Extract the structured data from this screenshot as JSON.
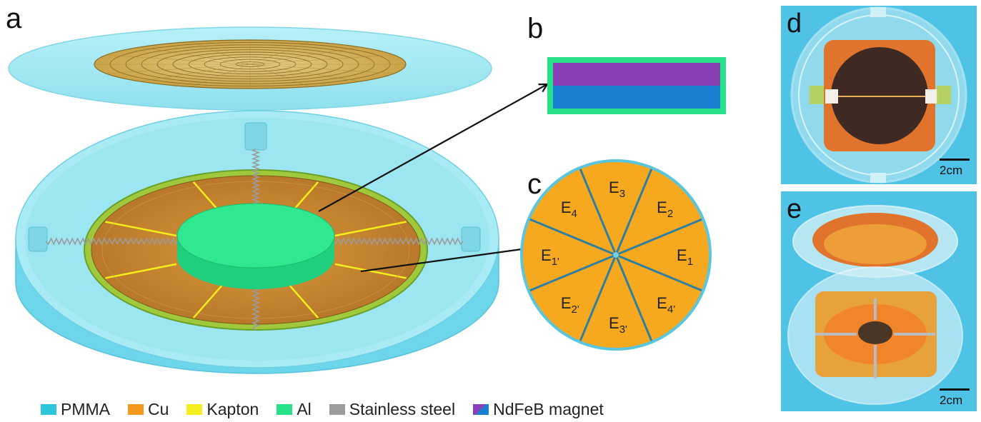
{
  "panels": {
    "a": "a",
    "b": "b",
    "c": "c",
    "d": "d",
    "e": "e"
  },
  "electrodes": [
    {
      "base": "E",
      "sub": "3"
    },
    {
      "base": "E",
      "sub": "2"
    },
    {
      "base": "E",
      "sub": "1"
    },
    {
      "base": "E",
      "sub": "4'"
    },
    {
      "base": "E",
      "sub": "3'"
    },
    {
      "base": "E",
      "sub": "2'"
    },
    {
      "base": "E",
      "sub": "1'"
    },
    {
      "base": "E",
      "sub": "4"
    }
  ],
  "legend": [
    {
      "label": "PMMA",
      "color": "#2bc6dc"
    },
    {
      "label": "Cu",
      "color": "#f39a1e"
    },
    {
      "label": "Kapton",
      "color": "#f4ee1c"
    },
    {
      "label": "Al",
      "color": "#27e08a"
    },
    {
      "label": "Stainless steel",
      "color": "#9c9c9c"
    },
    {
      "label": "NdFeB magnet",
      "color": "#8a3fb5",
      "color2": "#1a7fd1"
    }
  ],
  "scale": {
    "d": "2cm",
    "e": "2cm"
  },
  "colors": {
    "pmma": "#8fe3f0",
    "copper": "#f5a623",
    "aluminum": "#27e08a",
    "magnet_top": "#8a3fb5",
    "magnet_bottom": "#1a7fd1",
    "photo_bg": "#4ec3e6"
  }
}
